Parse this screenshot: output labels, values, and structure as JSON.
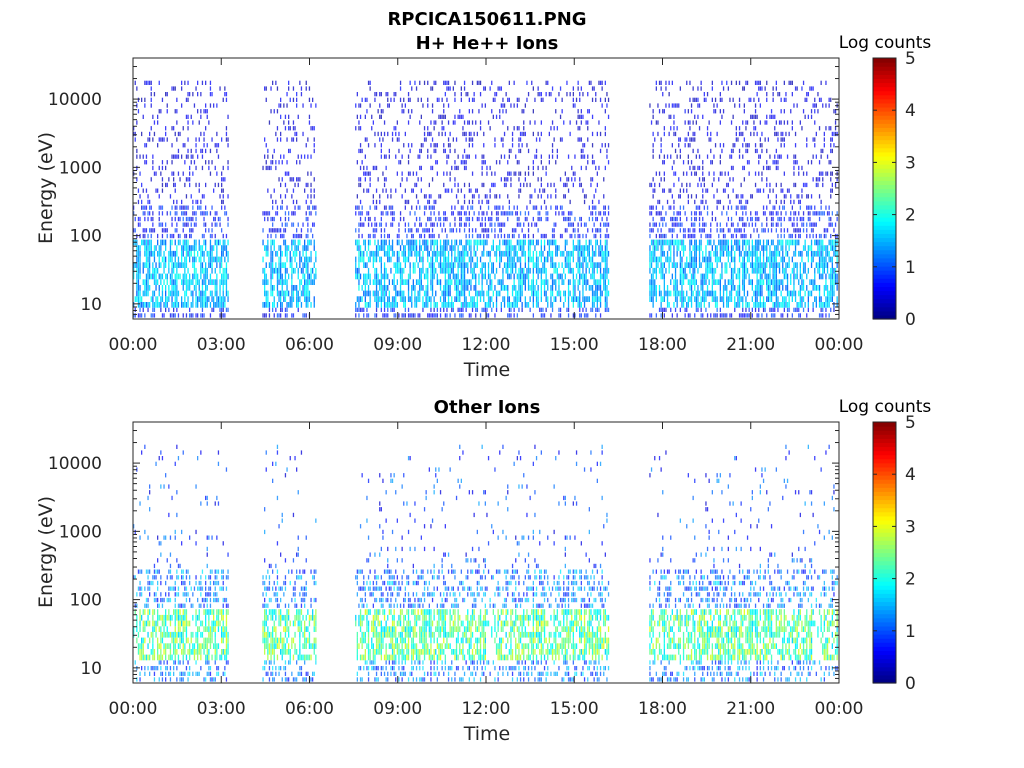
{
  "figure": {
    "title": "RPCICA150611.PNG"
  },
  "colorbar": {
    "label": "Log counts",
    "ticks": [
      "0",
      "1",
      "2",
      "3",
      "4",
      "5"
    ],
    "range": [
      0,
      5
    ],
    "colormap": "jet"
  },
  "chart_data": [
    {
      "type": "heatmap",
      "title": "H+ He++ Ions",
      "xlabel": "Time",
      "ylabel": "Energy (eV)",
      "x_tick_labels": [
        "00:00",
        "03:00",
        "06:00",
        "09:00",
        "12:00",
        "15:00",
        "18:00",
        "21:00",
        "00:00"
      ],
      "xlim_hours": [
        0,
        24
      ],
      "y_tick_labels": [
        "10",
        "100",
        "1000",
        "10000"
      ],
      "y_tick_values": [
        10,
        100,
        1000,
        10000
      ],
      "yscale": "log",
      "ylim": [
        6,
        40000
      ],
      "data_segments_hours": [
        [
          0.0,
          3.25
        ],
        [
          4.4,
          6.2
        ],
        [
          7.55,
          16.15
        ],
        [
          17.55,
          23.95
        ]
      ],
      "energy_band_peak_ev": [
        15,
        60
      ],
      "peak_log_counts": 2.0,
      "typical_log_counts": 0.6
    },
    {
      "type": "heatmap",
      "title": "Other Ions",
      "xlabel": "Time",
      "ylabel": "Energy (eV)",
      "x_tick_labels": [
        "00:00",
        "03:00",
        "06:00",
        "09:00",
        "12:00",
        "15:00",
        "18:00",
        "21:00",
        "00:00"
      ],
      "xlim_hours": [
        0,
        24
      ],
      "y_tick_labels": [
        "10",
        "100",
        "1000",
        "10000"
      ],
      "y_tick_values": [
        10,
        100,
        1000,
        10000
      ],
      "yscale": "log",
      "ylim": [
        6,
        40000
      ],
      "data_segments_hours": [
        [
          0.0,
          3.25
        ],
        [
          4.4,
          6.2
        ],
        [
          7.55,
          16.15
        ],
        [
          17.55,
          23.95
        ]
      ],
      "energy_band_peak_ev": [
        20,
        45
      ],
      "peak_log_counts": 3.0,
      "typical_log_counts": 1.2
    }
  ]
}
